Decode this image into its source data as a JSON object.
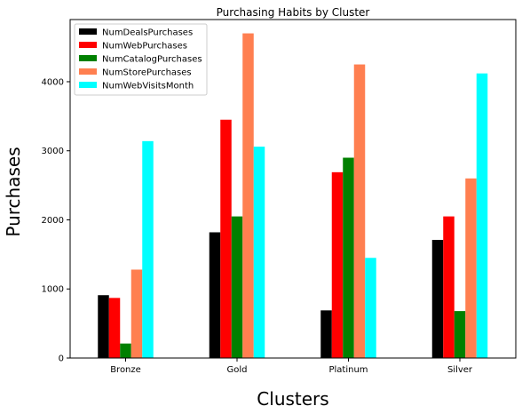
{
  "chart_data": {
    "type": "bar",
    "title": "Purchasing Habits by Cluster",
    "xlabel": "Clusters",
    "ylabel": "Purchases",
    "categories": [
      "Bronze",
      "Gold",
      "Platinum",
      "Silver"
    ],
    "ylim": [
      0,
      4900
    ],
    "yticks": [
      0,
      1000,
      2000,
      3000,
      4000
    ],
    "grid": false,
    "legend_position": "top-left",
    "series": [
      {
        "name": "NumDealsPurchases",
        "color": "#000000",
        "values": [
          910,
          1820,
          690,
          1710
        ]
      },
      {
        "name": "NumWebPurchases",
        "color": "#ff0000",
        "values": [
          870,
          3450,
          2690,
          2050
        ]
      },
      {
        "name": "NumCatalogPurchases",
        "color": "#008000",
        "values": [
          210,
          2050,
          2900,
          680
        ]
      },
      {
        "name": "NumStorePurchases",
        "color": "#ff7f50",
        "values": [
          1280,
          4700,
          4250,
          2600
        ]
      },
      {
        "name": "NumWebVisitsMonth",
        "color": "#00ffff",
        "values": [
          3140,
          3060,
          1450,
          4120
        ]
      }
    ]
  }
}
